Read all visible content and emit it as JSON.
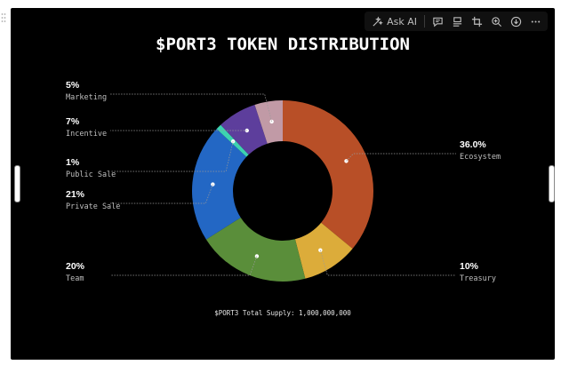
{
  "toolbar": {
    "ask_ai_label": "Ask AI",
    "icons": [
      "ask-ai-icon",
      "comment-icon",
      "layout-icon",
      "crop-icon",
      "zoom-in-icon",
      "download-icon",
      "more-icon"
    ]
  },
  "chart_data": {
    "type": "pie",
    "title": "$PORT3 TOKEN DISTRIBUTION",
    "footnote": "$PORT3 Total Supply: 1,000,000,000",
    "slices": [
      {
        "name": "Ecosystem",
        "percent_label": "36.0%",
        "value": 36,
        "color": "#b84f27"
      },
      {
        "name": "Treasury",
        "percent_label": "10%",
        "value": 10,
        "color": "#dcac3a"
      },
      {
        "name": "Team",
        "percent_label": "20%",
        "value": 20,
        "color": "#5a8e3a"
      },
      {
        "name": "Private Sale",
        "percent_label": "21%",
        "value": 21,
        "color": "#2367c4"
      },
      {
        "name": "Public Sale",
        "percent_label": "1%",
        "value": 1,
        "color": "#3dd3b0"
      },
      {
        "name": "Incentive",
        "percent_label": "7%",
        "value": 7,
        "color": "#5d3e9c"
      },
      {
        "name": "Marketing",
        "percent_label": "5%",
        "value": 5,
        "color": "#c19aa6"
      }
    ]
  }
}
